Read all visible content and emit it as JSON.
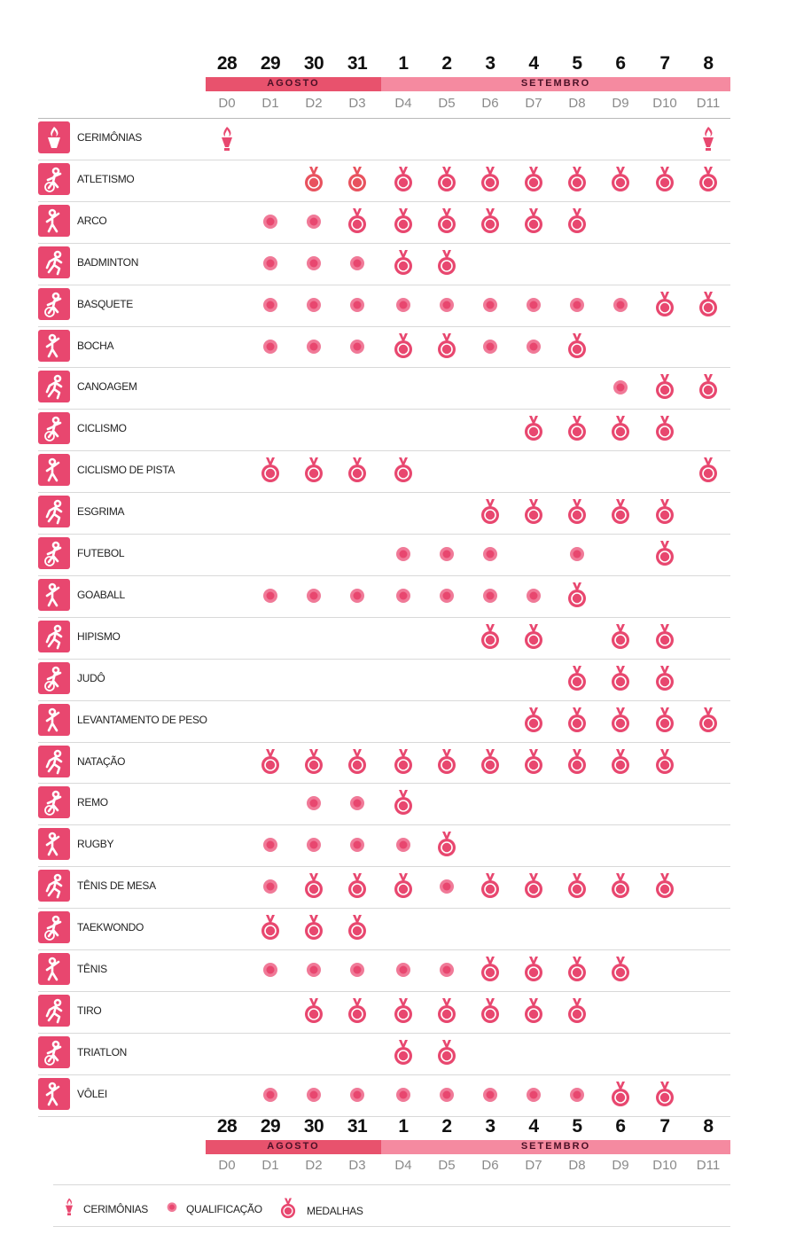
{
  "dates": [
    "28",
    "29",
    "30",
    "31",
    "1",
    "2",
    "3",
    "4",
    "5",
    "6",
    "7",
    "8"
  ],
  "day_codes": [
    "D0",
    "D1",
    "D2",
    "D3",
    "D4",
    "D5",
    "D6",
    "D7",
    "D8",
    "D9",
    "D10",
    "D11"
  ],
  "months": {
    "august": "AGOSTO",
    "september": "SETEMBRO"
  },
  "colors": {
    "accent": "#e8476f",
    "august_band": "#e8526d",
    "september_band": "#f58aa0"
  },
  "sports": [
    {
      "name": "CERIMÔNIAS",
      "icon": "torch-icon",
      "marks": [
        "C",
        "",
        "",
        "",
        "",
        "",
        "",
        "",
        "",
        "",
        "",
        "C"
      ]
    },
    {
      "name": "ATLETISMO",
      "icon": "athletics-icon",
      "marks": [
        "",
        "",
        "M2",
        "M2",
        "M",
        "M",
        "M",
        "M",
        "M",
        "M",
        "M",
        "M"
      ]
    },
    {
      "name": "ARCO",
      "icon": "archery-icon",
      "marks": [
        "",
        "Q",
        "Q",
        "M",
        "M",
        "M",
        "M",
        "M",
        "M",
        "",
        "",
        ""
      ]
    },
    {
      "name": "BADMINTON",
      "icon": "badminton-icon",
      "marks": [
        "",
        "Q",
        "Q",
        "Q",
        "M",
        "M",
        "",
        "",
        "",
        "",
        "",
        ""
      ]
    },
    {
      "name": "BASQUETE",
      "icon": "basketball-icon",
      "marks": [
        "",
        "Q",
        "Q",
        "Q",
        "Q",
        "Q",
        "Q",
        "Q",
        "Q",
        "Q",
        "M",
        "M"
      ]
    },
    {
      "name": "BOCHA",
      "icon": "boccia-icon",
      "marks": [
        "",
        "Q",
        "Q",
        "Q",
        "M",
        "M",
        "Q",
        "Q",
        "M",
        "",
        "",
        ""
      ]
    },
    {
      "name": "CANOAGEM",
      "icon": "canoe-icon",
      "marks": [
        "",
        "",
        "",
        "",
        "",
        "",
        "",
        "",
        "",
        "Q",
        "M",
        "M"
      ]
    },
    {
      "name": "CICLISMO",
      "icon": "cycling-icon",
      "marks": [
        "",
        "",
        "",
        "",
        "",
        "",
        "",
        "M",
        "M",
        "M",
        "M",
        ""
      ]
    },
    {
      "name": "CICLISMO DE PISTA",
      "icon": "track-cycling-icon",
      "marks": [
        "",
        "M",
        "M",
        "M",
        "M",
        "",
        "",
        "",
        "",
        "",
        "",
        "M"
      ]
    },
    {
      "name": "ESGRIMA",
      "icon": "fencing-icon",
      "marks": [
        "",
        "",
        "",
        "",
        "",
        "",
        "M",
        "M",
        "M",
        "M",
        "M",
        ""
      ]
    },
    {
      "name": "FUTEBOL",
      "icon": "football-icon",
      "marks": [
        "",
        "",
        "",
        "",
        "Q",
        "Q",
        "Q",
        "",
        "Q",
        "",
        "M",
        ""
      ]
    },
    {
      "name": "GOABALL",
      "icon": "goalball-icon",
      "marks": [
        "",
        "Q",
        "Q",
        "Q",
        "Q",
        "Q",
        "Q",
        "Q",
        "M",
        "",
        "",
        ""
      ]
    },
    {
      "name": "HIPISMO",
      "icon": "equestrian-icon",
      "marks": [
        "",
        "",
        "",
        "",
        "",
        "",
        "M",
        "M",
        "",
        "M",
        "M",
        ""
      ]
    },
    {
      "name": "JUDÔ",
      "icon": "judo-icon",
      "marks": [
        "",
        "",
        "",
        "",
        "",
        "",
        "",
        "",
        "M",
        "M",
        "M",
        ""
      ]
    },
    {
      "name": "LEVANTAMENTO DE PESO",
      "icon": "powerlifting-icon",
      "marks": [
        "",
        "",
        "",
        "",
        "",
        "",
        "",
        "M",
        "M",
        "M",
        "M",
        "M"
      ]
    },
    {
      "name": "NATAÇÃO",
      "icon": "swimming-icon",
      "marks": [
        "",
        "M",
        "M",
        "M",
        "M",
        "M",
        "M",
        "M",
        "M",
        "M",
        "M",
        ""
      ]
    },
    {
      "name": "REMO",
      "icon": "rowing-icon",
      "marks": [
        "",
        "",
        "Q",
        "Q",
        "M",
        "",
        "",
        "",
        "",
        "",
        "",
        ""
      ]
    },
    {
      "name": "RUGBY",
      "icon": "rugby-icon",
      "marks": [
        "",
        "Q",
        "Q",
        "Q",
        "Q",
        "M",
        "",
        "",
        "",
        "",
        "",
        ""
      ]
    },
    {
      "name": "TÊNIS DE MESA",
      "icon": "table-tennis-icon",
      "marks": [
        "",
        "Q",
        "M",
        "M",
        "M",
        "Q",
        "M",
        "M",
        "M",
        "M",
        "M",
        ""
      ]
    },
    {
      "name": "TAEKWONDO",
      "icon": "taekwondo-icon",
      "marks": [
        "",
        "M",
        "M",
        "M",
        "",
        "",
        "",
        "",
        "",
        "",
        "",
        ""
      ]
    },
    {
      "name": "TÊNIS",
      "icon": "tennis-icon",
      "marks": [
        "",
        "Q",
        "Q",
        "Q",
        "Q",
        "Q",
        "M",
        "M",
        "M",
        "M",
        "",
        ""
      ]
    },
    {
      "name": "TIRO",
      "icon": "shooting-icon",
      "marks": [
        "",
        "",
        "M",
        "M",
        "M",
        "M",
        "M",
        "M",
        "M",
        "",
        "",
        ""
      ]
    },
    {
      "name": "TRIATLON",
      "icon": "triathlon-icon",
      "marks": [
        "",
        "",
        "",
        "",
        "M",
        "M",
        "",
        "",
        "",
        "",
        "",
        ""
      ]
    },
    {
      "name": "VÔLEI",
      "icon": "volleyball-icon",
      "marks": [
        "",
        "Q",
        "Q",
        "Q",
        "Q",
        "Q",
        "Q",
        "Q",
        "Q",
        "M",
        "M",
        ""
      ]
    }
  ],
  "legend": {
    "ceremonies": "CERIMÔNIAS",
    "qualification": "QUALIFICAÇÃO",
    "medals": "MEDALHAS"
  }
}
